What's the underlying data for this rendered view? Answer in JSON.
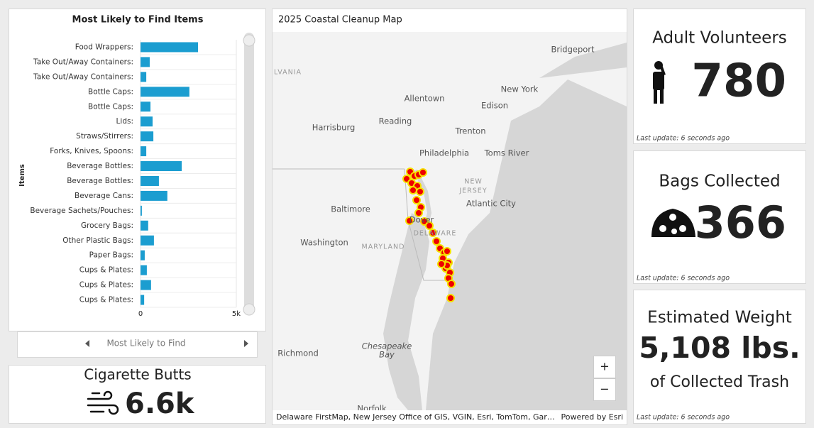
{
  "chart_data": {
    "type": "hbar",
    "title": "Most Likely to Find Items",
    "y_label": "Items",
    "footer": "Most Likely to Find",
    "categories": [
      "Food Wrappers:",
      "Take Out/Away Containers:",
      "Take Out/Away Containers:",
      "Bottle Caps:",
      "Bottle Caps:",
      "Lids:",
      "Straws/Stirrers:",
      "Forks, Knives, Spoons:",
      "Beverage Bottles:",
      "Beverage Bottles:",
      "Beverage Cans:",
      "Beverage Sachets/Pouches:",
      "Grocery Bags:",
      "Other Plastic Bags:",
      "Paper Bags:",
      "Cups & Plates:",
      "Cups & Plates:",
      "Cups & Plates:"
    ],
    "values": [
      3000,
      480,
      300,
      2550,
      520,
      630,
      670,
      300,
      2150,
      960,
      1400,
      70,
      400,
      700,
      220,
      330,
      550,
      190
    ],
    "color": "#1b9dd0",
    "xlim": [
      0,
      5000
    ],
    "xticks": [
      0,
      {
        "value": 5000,
        "label": "5k"
      }
    ],
    "grid": true
  },
  "map": {
    "title": "2025 Coastal Cleanup Map",
    "labels": [
      "Bridgeport",
      "LVANIA",
      "Allentown",
      "New York",
      "Edison",
      "Reading",
      "Harrisburg",
      "Trenton",
      "Philadelphia",
      "Toms River",
      "NEW",
      "JERSEY",
      "Baltimore",
      "Atlantic City",
      "Dover",
      "DELAWARE",
      "Washington",
      "MARYLAND",
      "Chesapeake",
      "Bay",
      "Richmond",
      "Norfolk"
    ],
    "zoom_in": "+",
    "zoom_out": "−",
    "attribution": "Delaware FirstMap, New Jersey Office of GIS, VGIN, Esri, TomTom, Gar…",
    "powered_by": "Powered by Esri"
  },
  "indicators": [
    {
      "title": "Adult Volunteers",
      "value": 780,
      "updated": "Last update: 6 seconds ago"
    },
    {
      "title": "Bags Collected",
      "value": 366,
      "updated": "Last update: 6 seconds ago"
    },
    {
      "title": "Estimated Weight",
      "value": "5,108 lbs.",
      "subtitle": "of Collected Trash",
      "updated": "Last update: 6 seconds ago"
    },
    {
      "title": "Cigarette Butts",
      "value": "6.6k"
    }
  ]
}
